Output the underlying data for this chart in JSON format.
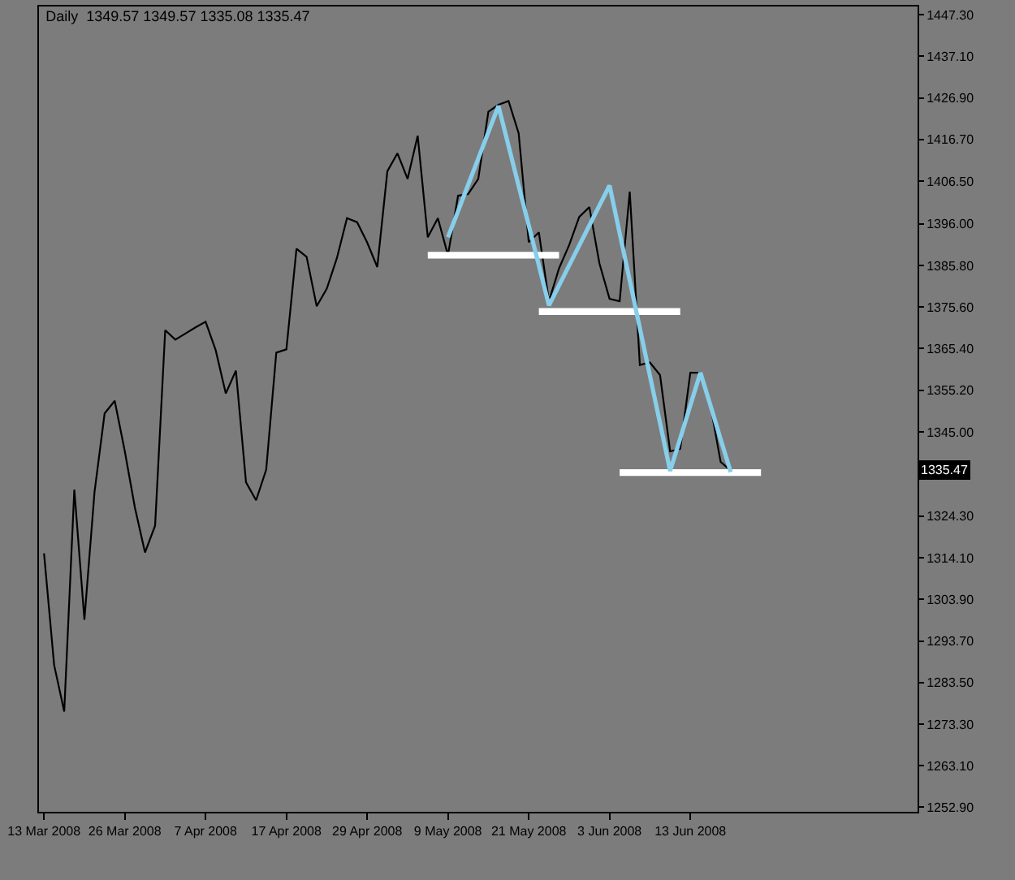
{
  "chart_data": {
    "type": "line",
    "title": "Daily  1349.57 1349.57 1335.08 1335.47",
    "categories": [
      "13 Mar 2008",
      null,
      null,
      null,
      null,
      null,
      null,
      null,
      "26 Mar 2008",
      null,
      null,
      null,
      null,
      null,
      null,
      null,
      "7 Apr 2008",
      null,
      null,
      null,
      null,
      null,
      null,
      null,
      "17 Apr 2008",
      null,
      null,
      null,
      null,
      null,
      null,
      null,
      "29 Apr 2008",
      null,
      null,
      null,
      null,
      null,
      null,
      null,
      "9 May 2008",
      null,
      null,
      null,
      null,
      null,
      null,
      null,
      "21 May 2008",
      null,
      null,
      null,
      null,
      null,
      null,
      null,
      "3 Jun 2008",
      null,
      null,
      null,
      null,
      null,
      null,
      null,
      "13 Jun 2008",
      null,
      null,
      null,
      null,
      null,
      null,
      null,
      null,
      null,
      null,
      null,
      null,
      null,
      null,
      null,
      null,
      null,
      null,
      null,
      null,
      null,
      null
    ],
    "series": [
      {
        "color": "#000000",
        "values": [
          1315.2,
          1287.8,
          1276.4,
          1330.8,
          1298.9,
          1330.2,
          1349.5,
          1352.6,
          1340.2,
          1326.4,
          1315.4,
          1322.0,
          1369.9,
          1367.6,
          1369.1,
          1370.6,
          1372.0,
          1365.0,
          1354.4,
          1360.0,
          1332.6,
          1328.2,
          1335.7,
          1364.4,
          1365.2,
          1389.9,
          1387.9,
          1375.8,
          1380.1,
          1387.6,
          1397.4,
          1396.4,
          1391.4,
          1385.4,
          1408.9,
          1413.3,
          1407.0,
          1417.6,
          1392.7,
          1397.4,
          1388.3,
          1402.9,
          1403.3,
          1407.0,
          1423.5,
          1425.2,
          1426.1,
          1418.2,
          1391.5,
          1393.9,
          1377.0,
          1385.1,
          1390.8,
          1397.7,
          1400.1,
          1386.3,
          1377.6,
          1377.0,
          1403.9,
          1361.4,
          1362.0,
          1358.9,
          1340.2,
          1340.8,
          1359.5,
          1359.5,
          1351.4,
          1337.6,
          1335.5,
          null,
          null,
          null,
          null,
          null,
          null,
          null,
          null,
          null,
          null,
          null,
          null,
          null,
          null,
          null,
          null,
          null,
          null
        ]
      },
      {
        "color": "#ffffff",
        "values": [
          null,
          null,
          null,
          null,
          null,
          null,
          null,
          null,
          null,
          null,
          null,
          null,
          null,
          null,
          null,
          null,
          null,
          null,
          null,
          null,
          null,
          null,
          null,
          null,
          null,
          null,
          null,
          null,
          null,
          null,
          null,
          null,
          null,
          null,
          null,
          null,
          null,
          null,
          1388.3,
          1388.3,
          1388.3,
          1388.3,
          1388.3,
          1388.3,
          1388.3,
          1388.3,
          1388.3,
          1388.3,
          1388.3,
          1388.3,
          1388.3,
          1388.3,
          null,
          null,
          null,
          null,
          null,
          null,
          null,
          null,
          null,
          null,
          null,
          null,
          null,
          null,
          null,
          null,
          null,
          null,
          null,
          null,
          null,
          null,
          null,
          null,
          null,
          null,
          null,
          null,
          null,
          null,
          null,
          null,
          null,
          null,
          null
        ]
      },
      {
        "color": "#ffffff",
        "values": [
          null,
          null,
          null,
          null,
          null,
          null,
          null,
          null,
          null,
          null,
          null,
          null,
          null,
          null,
          null,
          null,
          null,
          null,
          null,
          null,
          null,
          null,
          null,
          null,
          null,
          null,
          null,
          null,
          null,
          null,
          null,
          null,
          null,
          null,
          null,
          null,
          null,
          null,
          null,
          null,
          null,
          null,
          null,
          null,
          null,
          null,
          null,
          null,
          null,
          1374.5,
          1374.5,
          1374.5,
          1374.5,
          1374.5,
          1374.5,
          1374.5,
          1374.5,
          1374.5,
          1374.5,
          1374.5,
          1374.5,
          1374.5,
          1374.5,
          1374.5,
          null,
          null,
          null,
          null,
          null,
          null,
          null,
          null,
          null,
          null,
          null,
          null,
          null,
          null,
          null,
          null,
          null,
          null,
          null,
          null,
          null,
          null,
          null
        ]
      },
      {
        "color": "#ffffff",
        "values": [
          null,
          null,
          null,
          null,
          null,
          null,
          null,
          null,
          null,
          null,
          null,
          null,
          null,
          null,
          null,
          null,
          null,
          null,
          null,
          null,
          null,
          null,
          null,
          null,
          null,
          null,
          null,
          null,
          null,
          null,
          null,
          null,
          null,
          null,
          null,
          null,
          null,
          null,
          null,
          null,
          null,
          null,
          null,
          null,
          null,
          null,
          null,
          null,
          null,
          null,
          null,
          null,
          null,
          null,
          null,
          null,
          null,
          1335.0,
          1335.0,
          1335.0,
          1335.0,
          1335.0,
          1335.0,
          1335.0,
          1335.0,
          1335.0,
          1335.0,
          1335.0,
          1335.0,
          1335.0,
          1335.0,
          1335.0,
          null,
          null,
          null,
          null,
          null,
          null,
          null,
          null,
          null,
          null,
          null,
          null,
          null,
          null,
          null
        ]
      },
      {
        "color": "#87ceeb",
        "values": [
          null,
          null,
          null,
          null,
          null,
          null,
          null,
          null,
          null,
          null,
          null,
          null,
          null,
          null,
          null,
          null,
          null,
          null,
          null,
          null,
          null,
          null,
          null,
          null,
          null,
          null,
          null,
          null,
          null,
          null,
          null,
          null,
          null,
          null,
          null,
          null,
          null,
          null,
          null,
          null,
          1392.7,
          1399.1,
          1405.6,
          1412.0,
          1418.5,
          1424.9,
          1415.1,
          1405.3,
          1395.6,
          1385.8,
          1376.0,
          1380.9,
          1385.8,
          1390.7,
          1395.6,
          1400.5,
          1405.4,
          1393.7,
          1382.1,
          1370.4,
          1358.7,
          1347.1,
          1335.4,
          1343.4,
          1351.5,
          1359.5,
          1351.4,
          1343.2,
          1335.1,
          null,
          null,
          null,
          null,
          null,
          null,
          null,
          null,
          null,
          null,
          null,
          null,
          null,
          null,
          null,
          null,
          null,
          null
        ]
      }
    ],
    "ylim": [
      1251.8,
      1449.3
    ],
    "yticks": [
      {
        "value": 1447.3,
        "label": "1447.30"
      },
      {
        "value": 1437.1,
        "label": "1437.10"
      },
      {
        "value": 1426.9,
        "label": "1426.90"
      },
      {
        "value": 1416.7,
        "label": "1416.70"
      },
      {
        "value": 1406.5,
        "label": "1406.50"
      },
      {
        "value": 1396.0,
        "label": "1396.00"
      },
      {
        "value": 1385.8,
        "label": "1385.80"
      },
      {
        "value": 1375.6,
        "label": "1375.60"
      },
      {
        "value": 1365.4,
        "label": "1365.40"
      },
      {
        "value": 1355.2,
        "label": "1355.20"
      },
      {
        "value": 1345.0,
        "label": "1345.00"
      },
      {
        "value": 1324.3,
        "label": "1324.30"
      },
      {
        "value": 1314.1,
        "label": "1314.10"
      },
      {
        "value": 1303.9,
        "label": "1303.90"
      },
      {
        "value": 1293.7,
        "label": "1293.70"
      },
      {
        "value": 1283.5,
        "label": "1283.50"
      },
      {
        "value": 1273.3,
        "label": "1273.30"
      },
      {
        "value": 1263.1,
        "label": "1263.10"
      },
      {
        "value": 1252.9,
        "label": "1252.90"
      }
    ],
    "annotations": [
      {
        "text": "1335.47",
        "y": 1335.47
      }
    ],
    "grid": false
  }
}
